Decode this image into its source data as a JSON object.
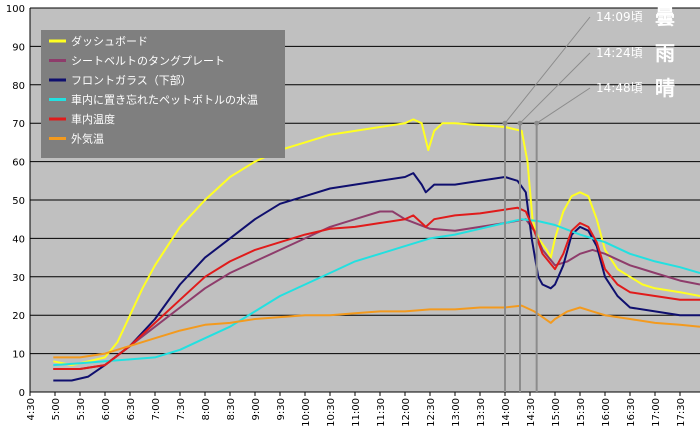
{
  "chart_data": {
    "type": "line",
    "title": "",
    "xlabel": "",
    "ylabel": "",
    "ylim": [
      0,
      100
    ],
    "yticks": [
      0,
      10,
      20,
      30,
      40,
      50,
      60,
      70,
      80,
      90,
      100
    ],
    "xlim": [
      "4:30",
      "17:54"
    ],
    "x_tick_labels": [
      "4:30",
      "5:00",
      "5:30",
      "6:00",
      "6:30",
      "7:00",
      "7:30",
      "8:00",
      "8:30",
      "9:00",
      "9:30",
      "10:00",
      "10:30",
      "11:00",
      "11:30",
      "12:00",
      "12:30",
      "13:00",
      "13:30",
      "14:00",
      "14:30",
      "15:00",
      "15:30",
      "16:00",
      "16:30",
      "17:00",
      "17:30"
    ],
    "grid": true,
    "legend_position": "top-left",
    "colors": {
      "plot_background": "#c0c0c0",
      "legend_background": "#7f7f7f",
      "legend_text": "#ffffff",
      "grid": "#000000",
      "marker_line": "#8c8c8c",
      "weather_text": "#ffffff"
    },
    "series": [
      {
        "name": "ダッシュボード",
        "color": "#ffff22",
        "points": [
          [
            "4:58",
            8
          ],
          [
            "5:20",
            7
          ],
          [
            "5:40",
            8
          ],
          [
            "6:00",
            9
          ],
          [
            "6:15",
            13
          ],
          [
            "6:30",
            20
          ],
          [
            "6:45",
            27
          ],
          [
            "7:00",
            33
          ],
          [
            "7:15",
            38
          ],
          [
            "7:30",
            43
          ],
          [
            "8:00",
            50
          ],
          [
            "8:30",
            56
          ],
          [
            "9:00",
            60
          ],
          [
            "9:30",
            63
          ],
          [
            "10:00",
            65
          ],
          [
            "10:30",
            67
          ],
          [
            "11:00",
            68
          ],
          [
            "11:30",
            69
          ],
          [
            "12:00",
            70
          ],
          [
            "12:10",
            71
          ],
          [
            "12:20",
            70
          ],
          [
            "12:28",
            63
          ],
          [
            "12:35",
            68
          ],
          [
            "12:45",
            70
          ],
          [
            "13:00",
            70
          ],
          [
            "13:30",
            69.5
          ],
          [
            "14:00",
            69
          ],
          [
            "14:20",
            68
          ],
          [
            "14:27",
            60
          ],
          [
            "14:33",
            45
          ],
          [
            "14:40",
            40
          ],
          [
            "14:50",
            37
          ],
          [
            "14:55",
            35
          ],
          [
            "15:00",
            40
          ],
          [
            "15:10",
            47
          ],
          [
            "15:20",
            51
          ],
          [
            "15:30",
            52
          ],
          [
            "15:40",
            51
          ],
          [
            "15:50",
            45
          ],
          [
            "16:00",
            37
          ],
          [
            "16:15",
            32
          ],
          [
            "16:30",
            30
          ],
          [
            "16:45",
            28
          ],
          [
            "17:00",
            27
          ],
          [
            "17:30",
            26
          ],
          [
            "17:54",
            25
          ]
        ]
      },
      {
        "name": "シートベルトのタングプレート",
        "color": "#8e3c6b",
        "points": [
          [
            "4:58",
            6
          ],
          [
            "5:30",
            6
          ],
          [
            "6:00",
            7
          ],
          [
            "6:30",
            12
          ],
          [
            "7:00",
            17
          ],
          [
            "7:30",
            22
          ],
          [
            "8:00",
            27
          ],
          [
            "8:30",
            31
          ],
          [
            "9:00",
            34
          ],
          [
            "9:30",
            37
          ],
          [
            "10:00",
            40
          ],
          [
            "10:30",
            43
          ],
          [
            "11:00",
            45
          ],
          [
            "11:30",
            47
          ],
          [
            "11:45",
            47
          ],
          [
            "12:00",
            45
          ],
          [
            "12:30",
            42.5
          ],
          [
            "13:00",
            42
          ],
          [
            "13:30",
            43
          ],
          [
            "14:00",
            44
          ],
          [
            "14:25",
            45
          ],
          [
            "14:35",
            42
          ],
          [
            "14:45",
            37
          ],
          [
            "15:00",
            33
          ],
          [
            "15:15",
            34
          ],
          [
            "15:30",
            36
          ],
          [
            "15:45",
            37
          ],
          [
            "16:00",
            36
          ],
          [
            "16:30",
            33
          ],
          [
            "17:00",
            31
          ],
          [
            "17:30",
            29
          ],
          [
            "17:54",
            28
          ]
        ]
      },
      {
        "name": "フロントガラス（下部）",
        "color": "#0f0f6e",
        "points": [
          [
            "4:58",
            3
          ],
          [
            "5:20",
            3
          ],
          [
            "5:40",
            4
          ],
          [
            "6:00",
            7
          ],
          [
            "6:30",
            12
          ],
          [
            "7:00",
            19
          ],
          [
            "7:30",
            28
          ],
          [
            "8:00",
            35
          ],
          [
            "8:30",
            40
          ],
          [
            "9:00",
            45
          ],
          [
            "9:30",
            49
          ],
          [
            "10:00",
            51
          ],
          [
            "10:30",
            53
          ],
          [
            "11:00",
            54
          ],
          [
            "11:30",
            55
          ],
          [
            "12:00",
            56
          ],
          [
            "12:10",
            57
          ],
          [
            "12:20",
            54
          ],
          [
            "12:25",
            52
          ],
          [
            "12:35",
            54
          ],
          [
            "13:00",
            54
          ],
          [
            "13:30",
            55
          ],
          [
            "14:00",
            56
          ],
          [
            "14:15",
            55
          ],
          [
            "14:25",
            52
          ],
          [
            "14:32",
            40
          ],
          [
            "14:40",
            30
          ],
          [
            "14:45",
            28
          ],
          [
            "14:55",
            27
          ],
          [
            "15:00",
            28
          ],
          [
            "15:10",
            33
          ],
          [
            "15:20",
            41
          ],
          [
            "15:30",
            43
          ],
          [
            "15:40",
            42
          ],
          [
            "15:50",
            38
          ],
          [
            "16:00",
            30
          ],
          [
            "16:15",
            25
          ],
          [
            "16:30",
            22
          ],
          [
            "17:00",
            21
          ],
          [
            "17:30",
            20
          ],
          [
            "17:54",
            20
          ]
        ]
      },
      {
        "name": "車内に置き忘れたペットボトルの水温",
        "color": "#22e0e0",
        "points": [
          [
            "4:58",
            7
          ],
          [
            "5:30",
            7.5
          ],
          [
            "6:00",
            8
          ],
          [
            "6:30",
            8.5
          ],
          [
            "7:00",
            9
          ],
          [
            "7:30",
            11
          ],
          [
            "8:00",
            14
          ],
          [
            "8:30",
            17
          ],
          [
            "9:00",
            21
          ],
          [
            "9:30",
            25
          ],
          [
            "10:00",
            28
          ],
          [
            "10:30",
            31
          ],
          [
            "11:00",
            34
          ],
          [
            "11:30",
            36
          ],
          [
            "12:00",
            38
          ],
          [
            "12:30",
            40
          ],
          [
            "13:00",
            41
          ],
          [
            "13:30",
            42.5
          ],
          [
            "14:00",
            44
          ],
          [
            "14:20",
            45
          ],
          [
            "14:40",
            44.5
          ],
          [
            "15:00",
            43.5
          ],
          [
            "15:30",
            41
          ],
          [
            "16:00",
            39
          ],
          [
            "16:30",
            36
          ],
          [
            "17:00",
            34
          ],
          [
            "17:30",
            32.5
          ],
          [
            "17:54",
            31
          ]
        ]
      },
      {
        "name": "車内温度",
        "color": "#e01b1b",
        "points": [
          [
            "4:58",
            6
          ],
          [
            "5:30",
            6
          ],
          [
            "6:00",
            7
          ],
          [
            "6:30",
            12
          ],
          [
            "7:00",
            18
          ],
          [
            "7:30",
            24
          ],
          [
            "8:00",
            30
          ],
          [
            "8:30",
            34
          ],
          [
            "9:00",
            37
          ],
          [
            "9:30",
            39
          ],
          [
            "10:00",
            41
          ],
          [
            "10:30",
            42.5
          ],
          [
            "11:00",
            43
          ],
          [
            "11:30",
            44
          ],
          [
            "12:00",
            45
          ],
          [
            "12:10",
            46
          ],
          [
            "12:20",
            44
          ],
          [
            "12:25",
            43
          ],
          [
            "12:35",
            45
          ],
          [
            "13:00",
            46
          ],
          [
            "13:30",
            46.5
          ],
          [
            "14:00",
            47.5
          ],
          [
            "14:15",
            48
          ],
          [
            "14:25",
            47
          ],
          [
            "14:35",
            42
          ],
          [
            "14:45",
            36
          ],
          [
            "15:00",
            32
          ],
          [
            "15:10",
            36
          ],
          [
            "15:20",
            42
          ],
          [
            "15:30",
            44
          ],
          [
            "15:40",
            43
          ],
          [
            "15:50",
            39
          ],
          [
            "16:00",
            32
          ],
          [
            "16:15",
            28
          ],
          [
            "16:30",
            26
          ],
          [
            "17:00",
            25
          ],
          [
            "17:30",
            24
          ],
          [
            "17:54",
            24
          ]
        ]
      },
      {
        "name": "外気温",
        "color": "#f39a1e",
        "points": [
          [
            "4:58",
            9
          ],
          [
            "5:30",
            9
          ],
          [
            "6:00",
            10
          ],
          [
            "6:30",
            12
          ],
          [
            "7:00",
            14
          ],
          [
            "7:30",
            16
          ],
          [
            "8:00",
            17.5
          ],
          [
            "8:30",
            18
          ],
          [
            "9:00",
            19
          ],
          [
            "9:30",
            19.5
          ],
          [
            "10:00",
            20
          ],
          [
            "10:30",
            20
          ],
          [
            "11:00",
            20.5
          ],
          [
            "11:30",
            21
          ],
          [
            "12:00",
            21
          ],
          [
            "12:30",
            21.5
          ],
          [
            "13:00",
            21.5
          ],
          [
            "13:30",
            22
          ],
          [
            "14:00",
            22
          ],
          [
            "14:20",
            22.5
          ],
          [
            "14:35",
            21
          ],
          [
            "14:45",
            19.5
          ],
          [
            "14:55",
            18
          ],
          [
            "15:00",
            19
          ],
          [
            "15:15",
            21
          ],
          [
            "15:30",
            22
          ],
          [
            "15:45",
            21
          ],
          [
            "16:00",
            20
          ],
          [
            "16:30",
            19
          ],
          [
            "17:00",
            18
          ],
          [
            "17:30",
            17.5
          ],
          [
            "17:54",
            17
          ]
        ]
      }
    ],
    "annotations": [
      {
        "time": "14:09頃",
        "weather": "曇",
        "at": "14:00"
      },
      {
        "time": "14:24頃",
        "weather": "雨",
        "at": "14:18"
      },
      {
        "time": "14:48頃",
        "weather": "晴",
        "at": "14:38"
      }
    ]
  }
}
